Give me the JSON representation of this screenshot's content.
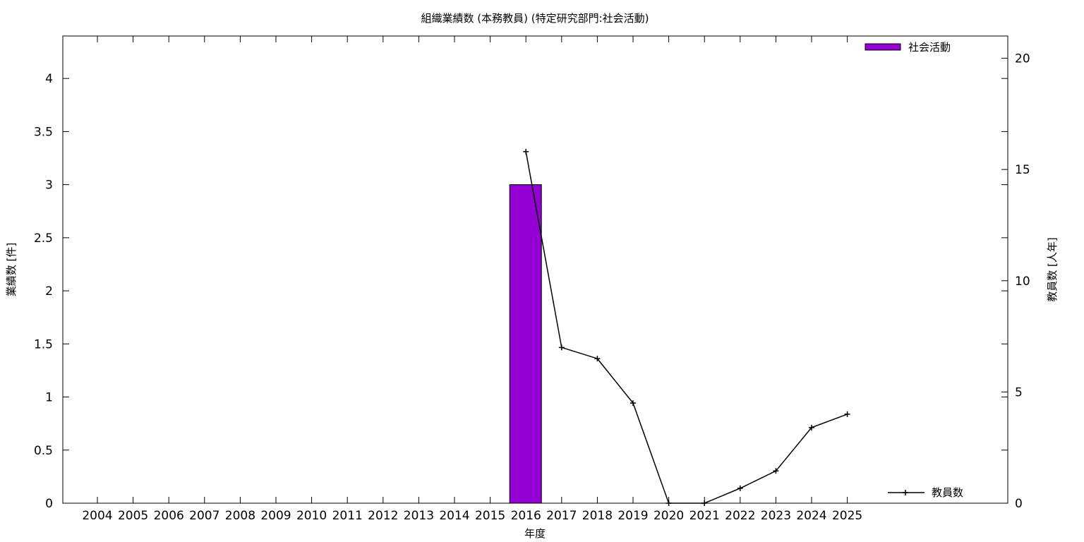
{
  "chart_data": {
    "type": "bar",
    "title": "組織業績数 (本務教員) (特定研究部門:社会活動)",
    "xlabel": "年度",
    "ylabel": "業績数 [件]",
    "y2label": "教員数 [人年]",
    "categories": [
      "2004",
      "2005",
      "2006",
      "2007",
      "2008",
      "2009",
      "2010",
      "2011",
      "2012",
      "2013",
      "2014",
      "2015",
      "2016",
      "2017",
      "2018",
      "2019",
      "2020",
      "2021",
      "2022",
      "2023",
      "2024",
      "2025"
    ],
    "ylim": [
      0,
      4.4
    ],
    "y2lim": [
      0,
      21
    ],
    "yticks": [
      "0",
      "0.5",
      "1",
      "1.5",
      "2",
      "2.5",
      "3",
      "3.5",
      "4"
    ],
    "y2ticks": [
      "0",
      "5",
      "10",
      "15",
      "20"
    ],
    "grid": false,
    "legend_position": "top-right",
    "series": [
      {
        "name": "社会活動",
        "kind": "bar",
        "axis": "left",
        "color": "#9400d3",
        "values": [
          0,
          0,
          0,
          0,
          0,
          0,
          0,
          0,
          0,
          0,
          0,
          0,
          3,
          0,
          0,
          0,
          0,
          0,
          0,
          0,
          0,
          0
        ]
      },
      {
        "name": "教員数",
        "kind": "line",
        "axis": "right",
        "color": "#000000",
        "x": [
          "2016",
          "2017",
          "2018",
          "2019",
          "2020",
          "2021",
          "2022",
          "2023",
          "2024",
          "2025"
        ],
        "values": [
          15.8,
          7.0,
          6.5,
          4.5,
          0,
          0,
          0.67,
          1.45,
          3.4,
          4.0
        ]
      }
    ]
  }
}
